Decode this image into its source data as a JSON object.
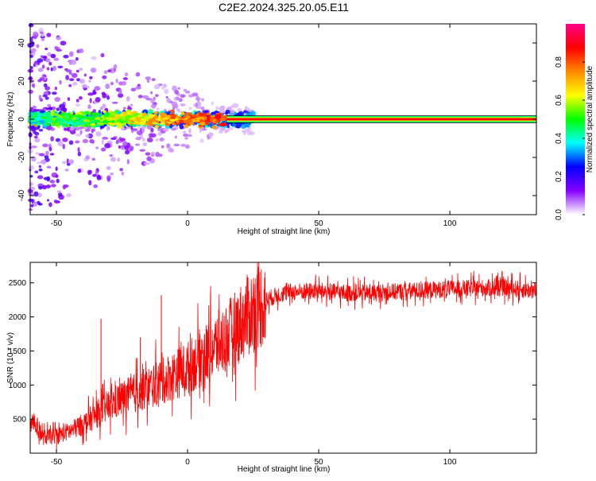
{
  "title": "C2E2.2024.325.20.05.E11",
  "chart_data": [
    {
      "type": "heatmap",
      "xlabel": "Height of straight line (km)",
      "ylabel": "Frequency (Hz)",
      "xlim": [
        -60,
        133
      ],
      "ylim": [
        -50,
        50
      ],
      "x_ticks": [
        -50,
        0,
        50,
        100
      ],
      "y_ticks": [
        -40,
        -20,
        0,
        20,
        40
      ],
      "colorbar": {
        "label": "Normalized spectral amplitude",
        "range": [
          0,
          1
        ],
        "ticks": [
          "0.0",
          "0.2",
          "0.4",
          "0.6",
          "0.8"
        ],
        "tick_values": [
          0.0,
          0.2,
          0.4,
          0.6,
          0.8
        ],
        "colors": [
          "#ffffff",
          "#8800ff",
          "#0000ff",
          "#00ffff",
          "#00ff00",
          "#ffff00",
          "#ff8800",
          "#ff0000",
          "#ff0088"
        ]
      },
      "ridge": {
        "frequency": 0,
        "x_start": 15,
        "x_end": 133,
        "amplitude": 0.85,
        "color": "#ff0000"
      },
      "noise_region": {
        "x_start": -60,
        "x_end": 15
      },
      "grid": false
    },
    {
      "type": "line",
      "xlabel": "Height of straight line (km)",
      "ylabel": "SNR (10 * v/v)",
      "xlim": [
        -60,
        133
      ],
      "ylim": [
        0,
        2800
      ],
      "x_ticks": [
        -50,
        0,
        50,
        100
      ],
      "y_ticks": [
        500,
        1000,
        1500,
        2000,
        2500
      ],
      "color": "#ff0000",
      "trend": {
        "x": [
          -60,
          -55,
          -50,
          -45,
          -40,
          -35,
          -30,
          -25,
          -20,
          -15,
          -10,
          -5,
          0,
          5,
          10,
          15,
          20,
          25,
          30,
          35,
          40,
          50,
          60,
          70,
          80,
          90,
          100,
          110,
          120,
          133
        ],
        "y": [
          550,
          230,
          260,
          320,
          420,
          560,
          700,
          800,
          880,
          960,
          1050,
          1150,
          1250,
          1400,
          1550,
          1700,
          1900,
          2100,
          2250,
          2330,
          2370,
          2380,
          2350,
          2350,
          2370,
          2390,
          2410,
          2420,
          2430,
          2380
        ]
      },
      "spikes": [
        {
          "x": -33,
          "y": 1970
        },
        {
          "x": -10,
          "y": 2320
        },
        {
          "x": -18,
          "y": 1700
        }
      ],
      "grid": false
    }
  ]
}
